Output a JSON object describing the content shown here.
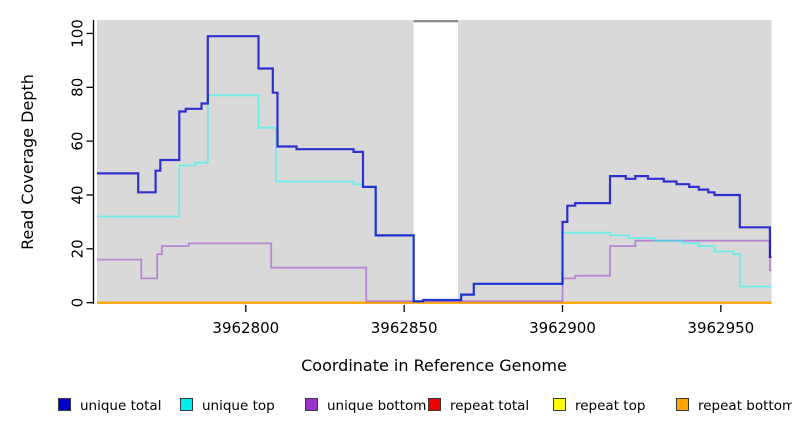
{
  "chart_data": {
    "type": "line",
    "subtype": "step",
    "title": "",
    "xlabel": "Coordinate in Reference Genome",
    "ylabel": "Read Coverage Depth",
    "xlim": [
      3962753,
      3962966
    ],
    "ylim": [
      -0.5,
      105
    ],
    "x_ticks": [
      "3962800",
      "3962850",
      "3962900",
      "3962950"
    ],
    "x_tick_values": [
      3962800,
      3962850,
      3962900,
      3962950
    ],
    "y_ticks": [
      "0",
      "20",
      "40",
      "60",
      "80",
      "100"
    ],
    "y_tick_values": [
      0,
      20,
      40,
      60,
      80,
      100
    ],
    "grid": false,
    "legend_position": "bottom",
    "plot_bg": "#d9d9d9",
    "axis_color": "#000000",
    "gap_region": {
      "start": 3962853,
      "end": 3962867,
      "fill": "#ffffff",
      "cap_color": "#8c8c8c"
    },
    "series": [
      {
        "name": "repeat total",
        "color": "#cc0000",
        "alpha": 0.9,
        "width": 1.8,
        "points": [
          [
            3962753,
            0
          ],
          [
            3962966,
            0
          ]
        ]
      },
      {
        "name": "repeat top",
        "color": "#ffff00",
        "alpha": 0.9,
        "width": 1.8,
        "points": [
          [
            3962753,
            0
          ],
          [
            3962966,
            0
          ]
        ]
      },
      {
        "name": "repeat bottom",
        "color": "#ffa500",
        "alpha": 0.95,
        "width": 2,
        "points": [
          [
            3962753,
            0
          ],
          [
            3962966,
            0
          ]
        ]
      },
      {
        "name": "unique bottom",
        "color": "#9932cc",
        "alpha": 0.5,
        "width": 1.8,
        "points": [
          [
            3962753,
            16
          ],
          [
            3962767,
            9
          ],
          [
            3962772,
            18
          ],
          [
            3962773.5,
            21
          ],
          [
            3962782,
            22
          ],
          [
            3962808,
            13
          ],
          [
            3962838,
            0.5
          ],
          [
            3962900,
            9
          ],
          [
            3962904,
            10
          ],
          [
            3962915,
            21
          ],
          [
            3962923,
            23
          ],
          [
            3962965.5,
            12
          ],
          [
            3962966,
            12
          ]
        ]
      },
      {
        "name": "unique top",
        "color": "#00ffff",
        "alpha": 0.5,
        "width": 1.8,
        "points": [
          [
            3962753,
            32
          ],
          [
            3962779,
            51
          ],
          [
            3962784,
            52
          ],
          [
            3962788,
            77
          ],
          [
            3962804,
            65
          ],
          [
            3962809.5,
            45
          ],
          [
            3962834,
            44
          ],
          [
            3962837,
            43
          ],
          [
            3962841,
            25
          ],
          [
            3962853,
            0.5
          ],
          [
            3962856,
            1
          ],
          [
            3962868,
            3
          ],
          [
            3962872,
            7
          ],
          [
            3962900,
            26
          ],
          [
            3962915,
            25
          ],
          [
            3962921,
            24
          ],
          [
            3962929,
            23
          ],
          [
            3962938,
            22
          ],
          [
            3962943,
            21
          ],
          [
            3962948,
            19
          ],
          [
            3962954,
            18
          ],
          [
            3962956,
            6
          ],
          [
            3962966,
            6
          ]
        ]
      },
      {
        "name": "unique total",
        "color": "#0000cd",
        "alpha": 0.78,
        "width": 2.2,
        "points": [
          [
            3962753,
            48
          ],
          [
            3962766,
            41
          ],
          [
            3962771.5,
            49
          ],
          [
            3962773,
            53
          ],
          [
            3962779,
            71
          ],
          [
            3962781,
            72
          ],
          [
            3962786,
            74
          ],
          [
            3962788,
            99
          ],
          [
            3962804,
            87
          ],
          [
            3962808.5,
            78
          ],
          [
            3962810,
            58
          ],
          [
            3962816,
            57
          ],
          [
            3962834,
            56
          ],
          [
            3962837,
            43
          ],
          [
            3962841,
            25
          ],
          [
            3962853,
            0.5
          ],
          [
            3962856,
            1
          ],
          [
            3962868,
            3
          ],
          [
            3962872,
            7
          ],
          [
            3962900,
            30
          ],
          [
            3962901.5,
            36
          ],
          [
            3962904,
            37
          ],
          [
            3962915,
            47
          ],
          [
            3962920,
            46
          ],
          [
            3962923,
            47
          ],
          [
            3962927,
            46
          ],
          [
            3962932,
            45
          ],
          [
            3962936,
            44
          ],
          [
            3962940,
            43
          ],
          [
            3962943,
            42
          ],
          [
            3962946,
            41
          ],
          [
            3962948,
            40
          ],
          [
            3962956,
            28
          ],
          [
            3962965.5,
            17
          ],
          [
            3962966,
            17
          ]
        ]
      }
    ],
    "legend": [
      {
        "label": "unique total",
        "color": "#0000cd"
      },
      {
        "label": "unique top",
        "color": "#00eeee"
      },
      {
        "label": "unique bottom",
        "color": "#9932cc"
      },
      {
        "label": "repeat total",
        "color": "#ee0000"
      },
      {
        "label": "repeat top",
        "color": "#ffff00"
      },
      {
        "label": "repeat bottom",
        "color": "#ffa500"
      }
    ]
  }
}
